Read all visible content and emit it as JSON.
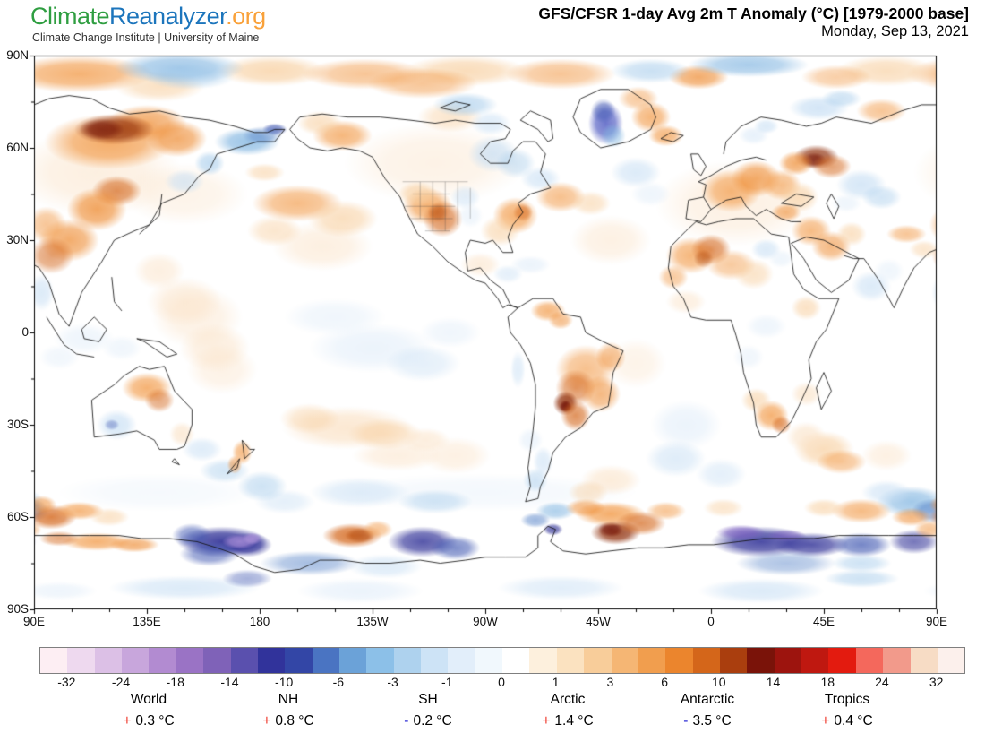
{
  "brand": {
    "part1": "Climate",
    "part2": "Reanalyzer",
    "part3": ".org",
    "tagline": "Climate Change Institute | University of Maine"
  },
  "header": {
    "title": "GFS/CFSR 1-day Avg 2m T Anomaly (°C) [1979-2000 base]",
    "date": "Monday, Sep 13, 2021"
  },
  "chart_data": {
    "type": "heatmap",
    "title": "GFS/CFSR 1-day Avg 2m T Anomaly (°C) [1979-2000 base]",
    "date": "Monday, Sep 13, 2021",
    "projection": "equirectangular world map, longitude 90E eastward around to 90E (centered near 90W), latitude 90N to 90S",
    "lat_ticks": [
      "90N",
      "60N",
      "30N",
      "0",
      "30S",
      "60S",
      "90S"
    ],
    "lon_ticks": [
      "90E",
      "135E",
      "180",
      "135W",
      "90W",
      "45W",
      "0",
      "45E",
      "90E"
    ],
    "colorbar": {
      "units": "°C",
      "tick_labels": [
        "-32",
        "-24",
        "-18",
        "-14",
        "-10",
        "-6",
        "-3",
        "-1",
        "0",
        "1",
        "3",
        "6",
        "10",
        "14",
        "18",
        "24",
        "32"
      ],
      "segment_colors": [
        "#fdeef3",
        "#eed9ef",
        "#dcc0e6",
        "#c8a6dc",
        "#b28bd1",
        "#9a73c5",
        "#7f62b8",
        "#5a50ae",
        "#31339b",
        "#3346a6",
        "#4a74c2",
        "#6ba2d8",
        "#8cc0e8",
        "#aed2ee",
        "#cde3f6",
        "#e2eefa",
        "#f1f8fd",
        "#ffffff",
        "#fdf0dd",
        "#fbe2c0",
        "#f8cd9a",
        "#f5b674",
        "#f19e4e",
        "#eb852d",
        "#d4661a",
        "#aa3e0e",
        "#7a1309",
        "#9d140e",
        "#bf1810",
        "#e31b0f",
        "#f4685c",
        "#f29a8b",
        "#f7dcc5",
        "#fcf0ec"
      ]
    },
    "regional_means": [
      {
        "region": "World",
        "sign": "+",
        "value": "0.3 °C"
      },
      {
        "region": "NH",
        "sign": "+",
        "value": "0.8 °C"
      },
      {
        "region": "SH",
        "sign": "-",
        "value": "0.2 °C"
      },
      {
        "region": "Arctic",
        "sign": "+",
        "value": "1.4 °C"
      },
      {
        "region": "Antarctic",
        "sign": "-",
        "value": "3.5 °C"
      },
      {
        "region": "Tropics",
        "sign": "+",
        "value": "0.4 °C"
      }
    ],
    "notable_features": [
      "Strong warm anomalies: central Siberia, western Russia, western and eastern US, Europe, Sahara, central South America (Paraguay/N Argentina), Weddell Sea sector near 60S 40W",
      "Strong cold anomalies: Ross Sea and East Antarctic coastal band (navy/purple, below -14), Greenland interior, Bering/Chukotka",
      "Cool equatorial eastern Pacific (La Nina-like), cool southwest Australia, cool central Sahara patch"
    ]
  },
  "colors": {
    "brand_green": "#2f9e41",
    "brand_blue": "#1c75bc",
    "brand_orange": "#f9a13a",
    "positive": "#ee3124",
    "negative": "#2a2ad4"
  }
}
